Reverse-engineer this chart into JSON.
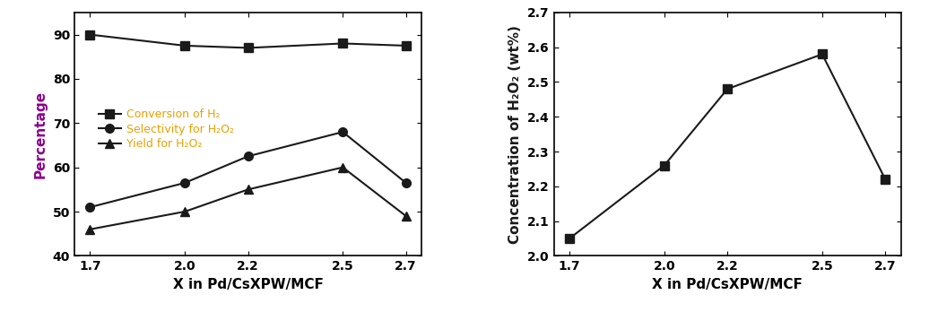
{
  "x": [
    1.7,
    2.0,
    2.2,
    2.5,
    2.7
  ],
  "conversion": [
    90.0,
    87.5,
    87.0,
    88.0,
    87.5
  ],
  "selectivity": [
    51.0,
    56.5,
    62.5,
    68.0,
    56.5
  ],
  "yield_data": [
    46.0,
    50.0,
    55.0,
    60.0,
    49.0
  ],
  "concentration": [
    2.05,
    2.26,
    2.48,
    2.58,
    2.22
  ],
  "left_ylabel": "Percentage",
  "right_ylabel": "Concentration of H₂O₂ (wt%)",
  "xlabel": "X in Pd/CsXPW/MCF",
  "left_ylim": [
    40,
    95
  ],
  "right_ylim": [
    2.0,
    2.7
  ],
  "left_yticks": [
    40,
    50,
    60,
    70,
    80,
    90
  ],
  "right_yticks": [
    2.0,
    2.1,
    2.2,
    2.3,
    2.4,
    2.5,
    2.6,
    2.7
  ],
  "legend_labels": [
    "Conversion of H₂",
    "Selectivity for H₂O₂",
    "Yield for H₂O₂"
  ],
  "line_color": "#1a1a1a",
  "marker_square": "s",
  "marker_circle": "o",
  "marker_triangle": "^",
  "marker_size": 7,
  "linewidth": 1.5,
  "legend_text_color": "#E8A000",
  "left_ylabel_color": "#8B008B",
  "right_ylabel_color": "#1a1a1a",
  "tick_fontsize": 10,
  "label_fontsize": 11,
  "legend_fontsize": 9
}
